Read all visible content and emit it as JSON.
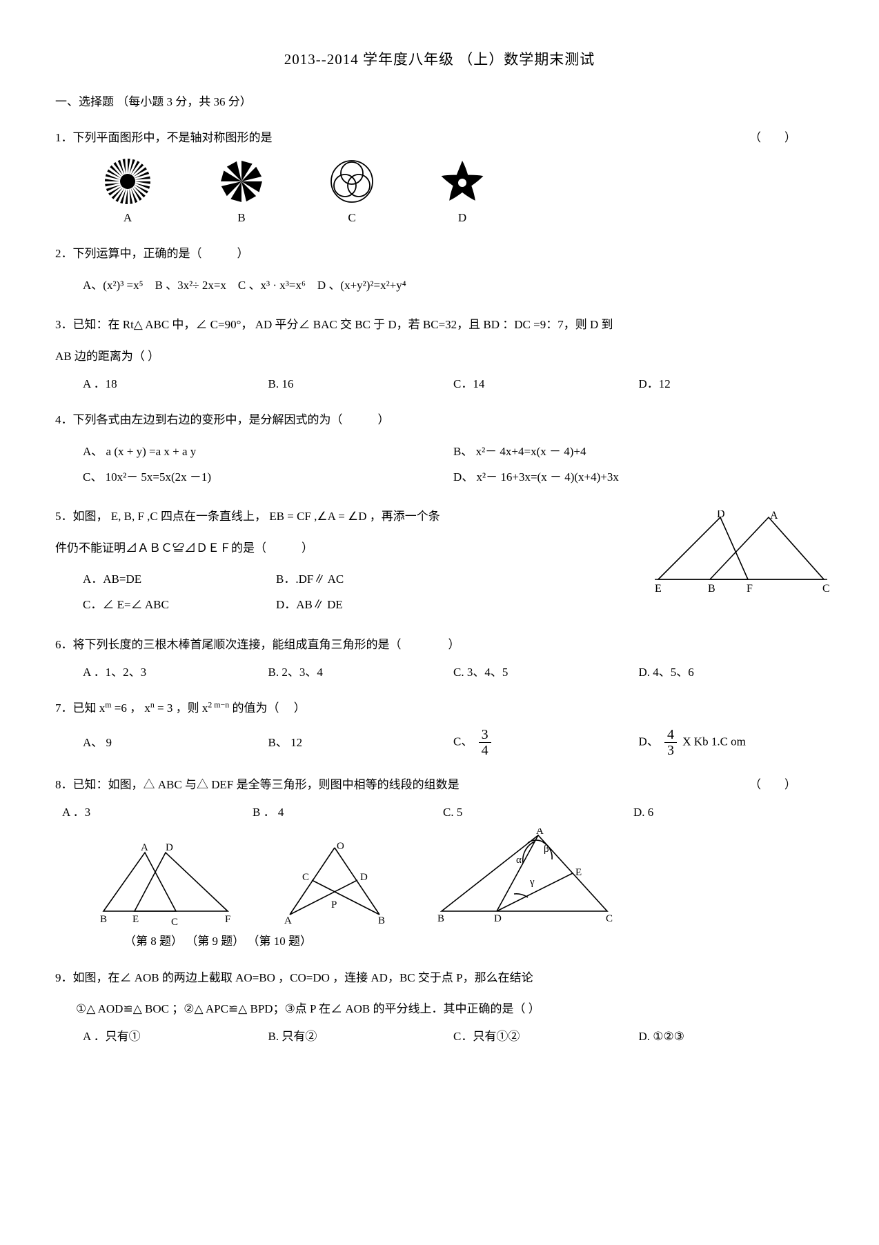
{
  "title": "2013--2014 学年度八年级 （上）数学期末测试",
  "section1": "一、选择题 （每小题  3 分，共 36 分）",
  "q1": {
    "text": "1．下列平面图形中，不是轴对称图形的是",
    "paren": "（　　）",
    "labels": {
      "A": "A",
      "B": "B",
      "C": "C",
      "D": "D"
    }
  },
  "q2": {
    "text": "2．下列运算中，正确的是（　　　）",
    "optsA": "A、(x²)³ =x⁵",
    "optsB": "B  、3x²÷ 2x=x",
    "optsC": "C   、x³ · x³=x⁶",
    "optsD": "D  、(x+y²)²=x²+y⁴"
  },
  "q3": {
    "line1": "3．已知：在 Rt△ ABC 中，∠ C=90°， AD 平分∠ BAC 交 BC 于 D，若 BC=32，且 BD ：DC =9：7，则 D 到",
    "line2": "AB 边的距离为（ ）",
    "A": "A ．18",
    "B": "B.   16",
    "C": "C．14",
    "D": "D．12"
  },
  "q4": {
    "text": "4．下列各式由左边到右边的变形中，是分解因式的为（　　　）",
    "A": "A、 a (x + y) =a x + a y",
    "B": "B、 x²－ 4x+4=x(x － 4)+4",
    "C": "C、 10x²－ 5x=5x(2x －1)",
    "D": "D、 x²－ 16+3x=(x － 4)(x+4)+3x"
  },
  "q5": {
    "line1": "5．如图，  E, B, F ,C 四点在一条直线上，    EB  = CF ,∠A = ∠D ，再添一个条",
    "line2": "件仍不能证明⊿ＡＢＣ≌⊿ＤＥＦ的是（　　　）",
    "A": "A．AB=DE",
    "B": "B．.DF∥ AC",
    "C": "C．∠ E=∠ ABC",
    "D": "D．AB∥ DE",
    "figD": "D",
    "figA": "A",
    "figE": "E",
    "figB": "B",
    "figF": "F",
    "figC": "C"
  },
  "q6": {
    "text": "6．将下列长度的三根木棒首尾顺次连接，能组成直角三角形的是（　　　　）",
    "A": "A ．1、2、3",
    "B": "B.  2、3、4",
    "C": "C.  3、4、5",
    "D": "D.  4、5、6"
  },
  "q7": {
    "text_pre": "7．已知 x",
    "text_mid1": " =6 ， x",
    "text_mid2": "  = 3 ，则 x",
    "text_post": " 的值为（　 ）",
    "sup_m": "m",
    "sup_n": "n",
    "sup_exp": "2 m−n",
    "A": "A、 9",
    "B": "B、 12",
    "C": "C、",
    "fracC_num": "3",
    "fracC_den": "4",
    "D": "D、",
    "fracD_num": "4",
    "fracD_den": "3",
    "watermark": " X Kb 1.C om"
  },
  "q8": {
    "text": "8．已知：如图，△ ABC 与△ DEF 是全等三角形，则图中相等的线段的组数是",
    "paren": "（　　）",
    "A": "A ．3",
    "B": "B ． 4",
    "C": "C.   5",
    "D": "D.   6",
    "caption": "（第 8 题） （第 9 题） （第 10 题）",
    "fig1": {
      "A": "A",
      "D": "D",
      "B": "B",
      "E": "E",
      "C": "C",
      "F": "F"
    },
    "fig2": {
      "O": "O",
      "C": "C",
      "D": "D",
      "P": "P",
      "A": "A",
      "B": "B"
    },
    "fig3": {
      "A": "A",
      "B": "B",
      "C": "C",
      "D": "D",
      "E": "E",
      "alpha": "α",
      "beta": "β",
      "gamma": "γ"
    }
  },
  "q9": {
    "line1": "9．如图，在∠ AOB 的两边上截取   AO=BO ，CO=DO ，连接 AD，BC 交于点 P，那么在结论",
    "line2": "①△ AOD≌△ BOC ；②△ APC≌△ BPD；③点 P 在∠ AOB 的平分线上．其中正确的是（ ）",
    "A": "A ．只有①",
    "B": "B.   只有②",
    "C": "C．只有①②",
    "D": "D.   ①②③"
  }
}
